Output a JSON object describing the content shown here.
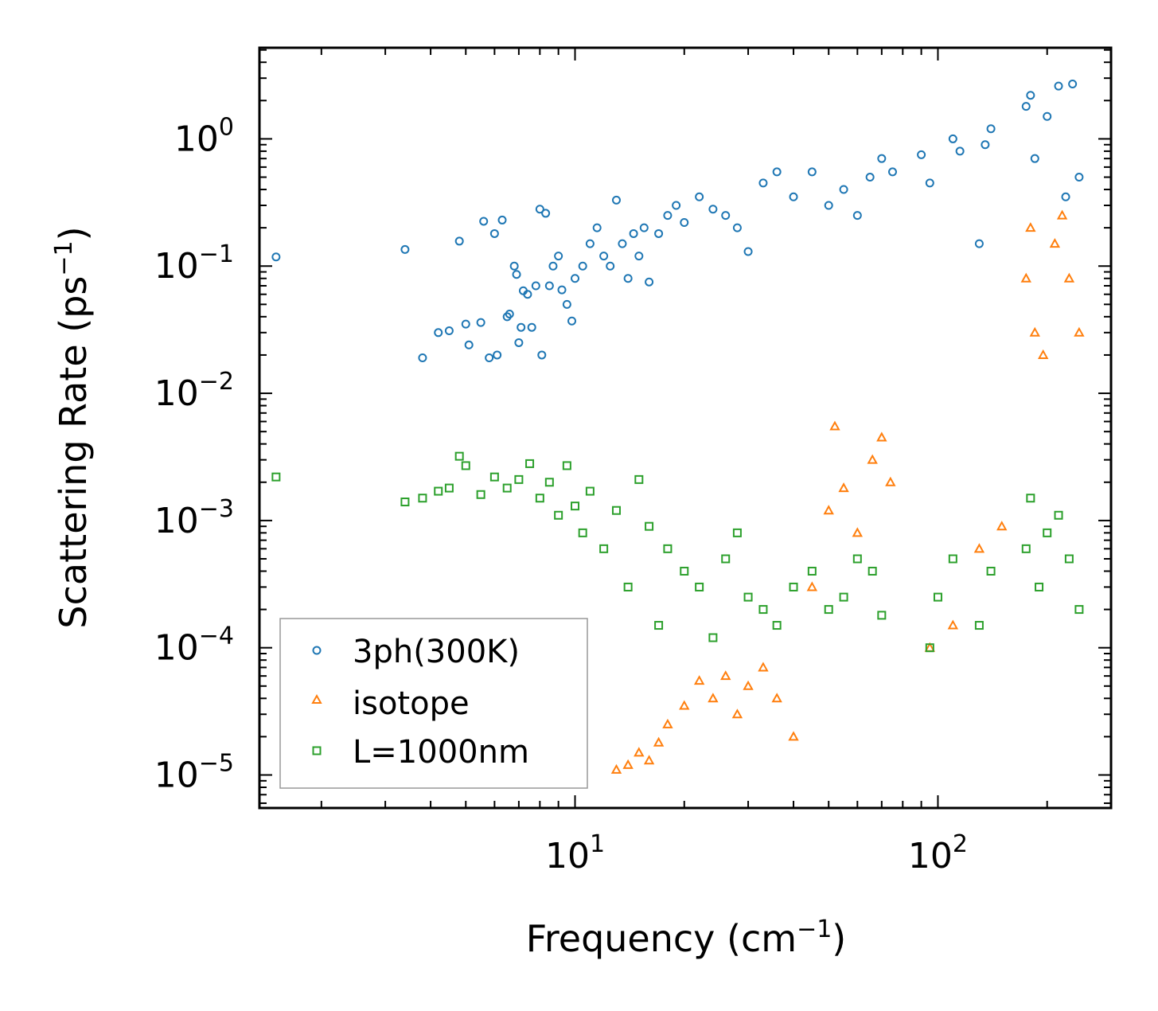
{
  "chart_data": {
    "type": "scatter",
    "xscale": "log",
    "yscale": "log",
    "xlim": [
      1.35,
      300
    ],
    "ylim": [
      5.5e-06,
      5.2
    ],
    "xlabel": "Frequency (cm",
    "xlabel_sup": "−1",
    "xlabel_end": ")",
    "ylabel": "Scattering Rate (ps",
    "ylabel_sup": "−1",
    "ylabel_end": ")",
    "x_ticks": [
      {
        "value": 10,
        "base": "10",
        "exp": "1"
      },
      {
        "value": 100,
        "base": "10",
        "exp": "2"
      }
    ],
    "y_ticks": [
      {
        "value": 1,
        "base": "10",
        "exp": "0"
      },
      {
        "value": 0.1,
        "base": "10",
        "exp": "−1"
      },
      {
        "value": 0.01,
        "base": "10",
        "exp": "−2"
      },
      {
        "value": 0.001,
        "base": "10",
        "exp": "−3"
      },
      {
        "value": 0.0001,
        "base": "10",
        "exp": "−4"
      },
      {
        "value": 1e-05,
        "base": "10",
        "exp": "−5"
      }
    ],
    "legend_position": "lower-left",
    "series": [
      {
        "name": "3ph(300K)",
        "marker": "circle",
        "color": "#1f77b4",
        "points": [
          [
            1.5,
            0.118
          ],
          [
            3.4,
            0.135
          ],
          [
            3.8,
            0.019
          ],
          [
            4.2,
            0.03
          ],
          [
            4.5,
            0.031
          ],
          [
            4.8,
            0.157
          ],
          [
            5.0,
            0.035
          ],
          [
            5.1,
            0.024
          ],
          [
            5.5,
            0.036
          ],
          [
            5.6,
            0.225
          ],
          [
            5.8,
            0.019
          ],
          [
            6.0,
            0.18
          ],
          [
            6.1,
            0.02
          ],
          [
            6.3,
            0.23
          ],
          [
            6.5,
            0.04
          ],
          [
            6.6,
            0.042
          ],
          [
            6.8,
            0.1
          ],
          [
            6.9,
            0.086
          ],
          [
            7.0,
            0.025
          ],
          [
            7.1,
            0.033
          ],
          [
            7.2,
            0.064
          ],
          [
            7.4,
            0.06
          ],
          [
            7.6,
            0.033
          ],
          [
            7.8,
            0.07
          ],
          [
            8.0,
            0.28
          ],
          [
            8.1,
            0.02
          ],
          [
            8.3,
            0.26
          ],
          [
            8.5,
            0.07
          ],
          [
            8.7,
            0.1
          ],
          [
            9.0,
            0.12
          ],
          [
            9.2,
            0.065
          ],
          [
            9.5,
            0.05
          ],
          [
            9.8,
            0.037
          ],
          [
            10.0,
            0.08
          ],
          [
            10.5,
            0.1
          ],
          [
            11.0,
            0.15
          ],
          [
            11.5,
            0.2
          ],
          [
            12.0,
            0.12
          ],
          [
            12.5,
            0.1
          ],
          [
            13.0,
            0.33
          ],
          [
            13.5,
            0.15
          ],
          [
            14.0,
            0.08
          ],
          [
            14.5,
            0.18
          ],
          [
            15.0,
            0.12
          ],
          [
            15.5,
            0.2
          ],
          [
            16.0,
            0.075
          ],
          [
            17.0,
            0.18
          ],
          [
            18.0,
            0.25
          ],
          [
            19.0,
            0.3
          ],
          [
            20.0,
            0.22
          ],
          [
            22.0,
            0.35
          ],
          [
            24.0,
            0.28
          ],
          [
            26.0,
            0.25
          ],
          [
            28.0,
            0.2
          ],
          [
            30.0,
            0.13
          ],
          [
            33.0,
            0.45
          ],
          [
            36.0,
            0.55
          ],
          [
            40.0,
            0.35
          ],
          [
            45.0,
            0.55
          ],
          [
            50.0,
            0.3
          ],
          [
            55.0,
            0.4
          ],
          [
            60.0,
            0.25
          ],
          [
            65.0,
            0.5
          ],
          [
            70.0,
            0.7
          ],
          [
            75.0,
            0.55
          ],
          [
            90.0,
            0.75
          ],
          [
            95.0,
            0.45
          ],
          [
            110.0,
            1.0
          ],
          [
            115.0,
            0.8
          ],
          [
            130.0,
            0.15
          ],
          [
            135.0,
            0.9
          ],
          [
            140.0,
            1.2
          ],
          [
            175.0,
            1.8
          ],
          [
            180.0,
            2.2
          ],
          [
            185.0,
            0.7
          ],
          [
            200.0,
            1.5
          ],
          [
            215.0,
            2.6
          ],
          [
            225.0,
            0.35
          ],
          [
            235.0,
            2.7
          ],
          [
            245.0,
            0.5
          ]
        ]
      },
      {
        "name": "isotope",
        "marker": "triangle",
        "color": "#ff7f0e",
        "points": [
          [
            13.0,
            1.1e-05
          ],
          [
            14.0,
            1.2e-05
          ],
          [
            15.0,
            1.5e-05
          ],
          [
            16.0,
            1.3e-05
          ],
          [
            17.0,
            1.8e-05
          ],
          [
            18.0,
            2.5e-05
          ],
          [
            20.0,
            3.5e-05
          ],
          [
            22.0,
            5.5e-05
          ],
          [
            24.0,
            4e-05
          ],
          [
            26.0,
            6e-05
          ],
          [
            28.0,
            3e-05
          ],
          [
            30.0,
            5e-05
          ],
          [
            33.0,
            7e-05
          ],
          [
            36.0,
            4e-05
          ],
          [
            40.0,
            2e-05
          ],
          [
            45.0,
            0.0003
          ],
          [
            50.0,
            0.0012
          ],
          [
            52.0,
            0.0055
          ],
          [
            55.0,
            0.0018
          ],
          [
            60.0,
            0.0008
          ],
          [
            66.0,
            0.003
          ],
          [
            70.0,
            0.0045
          ],
          [
            74.0,
            0.002
          ],
          [
            95.0,
            0.0001
          ],
          [
            110.0,
            0.00015
          ],
          [
            130.0,
            0.0006
          ],
          [
            150.0,
            0.0009
          ],
          [
            175.0,
            0.08
          ],
          [
            180.0,
            0.2
          ],
          [
            185.0,
            0.03
          ],
          [
            195.0,
            0.02
          ],
          [
            210.0,
            0.15
          ],
          [
            220.0,
            0.25
          ],
          [
            230.0,
            0.08
          ],
          [
            245.0,
            0.03
          ]
        ]
      },
      {
        "name": "L=1000nm",
        "marker": "square",
        "color": "#2ca02c",
        "points": [
          [
            1.5,
            0.0022
          ],
          [
            3.4,
            0.0014
          ],
          [
            3.8,
            0.0015
          ],
          [
            4.2,
            0.0017
          ],
          [
            4.5,
            0.0018
          ],
          [
            4.8,
            0.0032
          ],
          [
            5.0,
            0.0027
          ],
          [
            5.5,
            0.0016
          ],
          [
            6.0,
            0.0022
          ],
          [
            6.5,
            0.0018
          ],
          [
            7.0,
            0.0021
          ],
          [
            7.5,
            0.0028
          ],
          [
            8.0,
            0.0015
          ],
          [
            8.5,
            0.002
          ],
          [
            9.0,
            0.0011
          ],
          [
            9.5,
            0.0027
          ],
          [
            10.0,
            0.0013
          ],
          [
            10.5,
            0.0008
          ],
          [
            11.0,
            0.0017
          ],
          [
            12.0,
            0.0006
          ],
          [
            13.0,
            0.0012
          ],
          [
            14.0,
            0.0003
          ],
          [
            15.0,
            0.0021
          ],
          [
            16.0,
            0.0009
          ],
          [
            17.0,
            0.00015
          ],
          [
            18.0,
            0.0006
          ],
          [
            20.0,
            0.0004
          ],
          [
            22.0,
            0.0003
          ],
          [
            24.0,
            0.00012
          ],
          [
            26.0,
            0.0005
          ],
          [
            28.0,
            0.0008
          ],
          [
            30.0,
            0.00025
          ],
          [
            33.0,
            0.0002
          ],
          [
            36.0,
            0.00015
          ],
          [
            40.0,
            0.0003
          ],
          [
            45.0,
            0.0004
          ],
          [
            50.0,
            0.0002
          ],
          [
            55.0,
            0.00025
          ],
          [
            60.0,
            0.0005
          ],
          [
            66.0,
            0.0004
          ],
          [
            70.0,
            0.00018
          ],
          [
            95.0,
            0.0001
          ],
          [
            100.0,
            0.00025
          ],
          [
            110.0,
            0.0005
          ],
          [
            130.0,
            0.00015
          ],
          [
            140.0,
            0.0004
          ],
          [
            175.0,
            0.0006
          ],
          [
            180.0,
            0.0015
          ],
          [
            190.0,
            0.0003
          ],
          [
            200.0,
            0.0008
          ],
          [
            215.0,
            0.0011
          ],
          [
            230.0,
            0.0005
          ],
          [
            245.0,
            0.0002
          ]
        ]
      }
    ]
  }
}
